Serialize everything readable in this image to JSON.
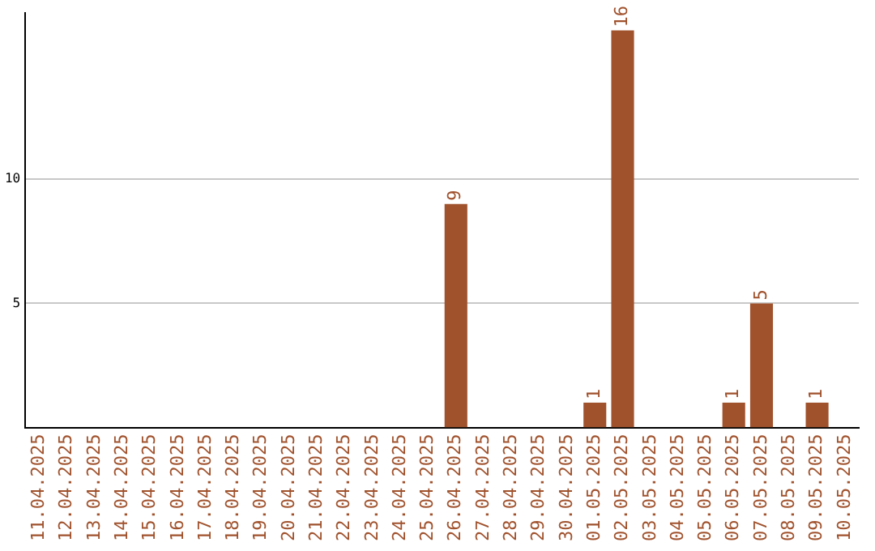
{
  "chart_data": {
    "type": "bar",
    "categories": [
      "11.04.2025",
      "12.04.2025",
      "13.04.2025",
      "14.04.2025",
      "15.04.2025",
      "16.04.2025",
      "17.04.2025",
      "18.04.2025",
      "19.04.2025",
      "20.04.2025",
      "21.04.2025",
      "22.04.2025",
      "23.04.2025",
      "24.04.2025",
      "25.04.2025",
      "26.04.2025",
      "27.04.2025",
      "28.04.2025",
      "29.04.2025",
      "30.04.2025",
      "01.05.2025",
      "02.05.2025",
      "03.05.2025",
      "04.05.2025",
      "05.05.2025",
      "06.05.2025",
      "07.05.2025",
      "08.05.2025",
      "09.05.2025",
      "10.05.2025"
    ],
    "values": [
      0,
      0,
      0,
      0,
      0,
      0,
      0,
      0,
      0,
      0,
      0,
      0,
      0,
      0,
      0,
      9,
      0,
      0,
      0,
      0,
      1,
      16,
      0,
      0,
      0,
      1,
      5,
      0,
      1,
      0
    ],
    "value_labels": [
      null,
      null,
      null,
      null,
      null,
      null,
      null,
      null,
      null,
      null,
      null,
      null,
      null,
      null,
      null,
      "9",
      null,
      null,
      null,
      null,
      "1",
      "16",
      null,
      null,
      null,
      "1",
      "5",
      null,
      "1",
      null
    ],
    "color": "#a0522d",
    "ylim": [
      0,
      16.7
    ],
    "yticks": [
      5,
      10
    ],
    "grid": "y",
    "legend": false
  }
}
